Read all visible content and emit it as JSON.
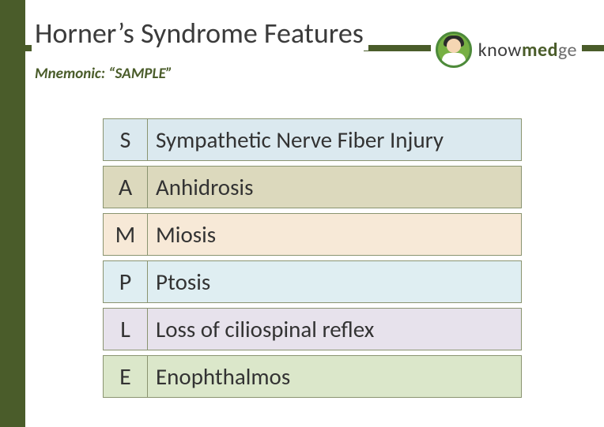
{
  "header": {
    "title": "Horner’s Syndrome Features",
    "subtitle": "Mnemonic:  “SAMPLE”"
  },
  "logo": {
    "part1": "know",
    "part2": "med",
    "part3": "ge"
  },
  "colors": {
    "accent": "#4a5c2a",
    "row_border": "#8a9470"
  },
  "table": {
    "rows": [
      {
        "letter": "S",
        "desc": "Sympathetic Nerve Fiber Injury",
        "bg": "#dbe9ef"
      },
      {
        "letter": "A",
        "desc": "Anhidrosis",
        "bg": "#dcd9bd"
      },
      {
        "letter": "M",
        "desc": "Miosis",
        "bg": "#f7e9d7"
      },
      {
        "letter": "P",
        "desc": "Ptosis",
        "bg": "#dfeef2"
      },
      {
        "letter": "L",
        "desc": "Loss of ciliospinal reflex",
        "bg": "#e7e2ec"
      },
      {
        "letter": "E",
        "desc": "Enophthalmos",
        "bg": "#dbe7ca"
      }
    ]
  }
}
